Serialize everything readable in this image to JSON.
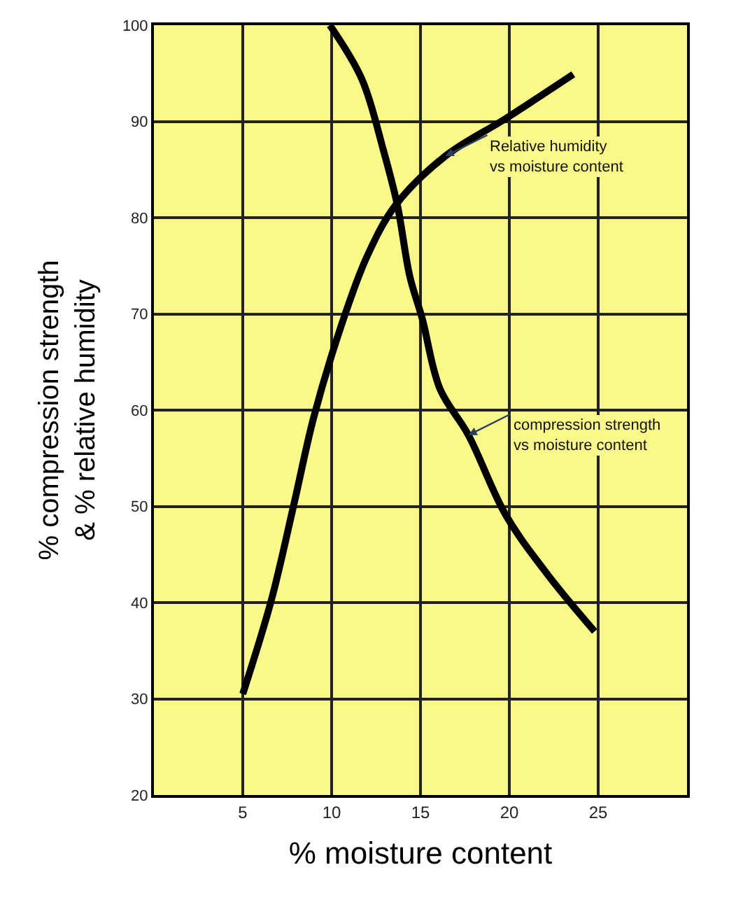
{
  "chart_data": {
    "type": "line",
    "xlabel": "% moisture content",
    "ylabel": "% compression strength\n& % relative humidity",
    "xlim": [
      0,
      30
    ],
    "xticks": [
      5,
      10,
      15,
      20,
      25
    ],
    "ylim": [
      20,
      100
    ],
    "yticks": [
      20,
      30,
      40,
      50,
      60,
      70,
      80,
      90,
      100
    ],
    "grid": true,
    "marker": "none",
    "line_style": "solid",
    "series": [
      {
        "color": "#000000",
        "x": [
          5,
          6.6,
          7.9,
          9.0,
          10.6,
          12.0,
          13.6,
          16.4,
          19.8,
          23.6
        ],
        "values": [
          30.5,
          40.2,
          50.4,
          59.3,
          69.1,
          76,
          81.3,
          86.4,
          90.3,
          94.9
        ]
      },
      {
        "color": "#000000",
        "x": [
          9.9,
          11.7,
          12.9,
          13.7,
          14.4,
          15.1,
          16.1,
          17.7,
          19.8,
          22.2,
          24.8
        ],
        "values": [
          100,
          94.4,
          87.1,
          81.3,
          73.9,
          69.5,
          62.2,
          57.4,
          49.1,
          42.8,
          37.0
        ]
      }
    ],
    "annotations": [
      {
        "text": "Relative humidity\nvs moisture content",
        "x": 16.4,
        "y": 86.4
      },
      {
        "text": "compression strength\nvs moisture content",
        "x": 17.7,
        "y": 57.4
      }
    ]
  }
}
